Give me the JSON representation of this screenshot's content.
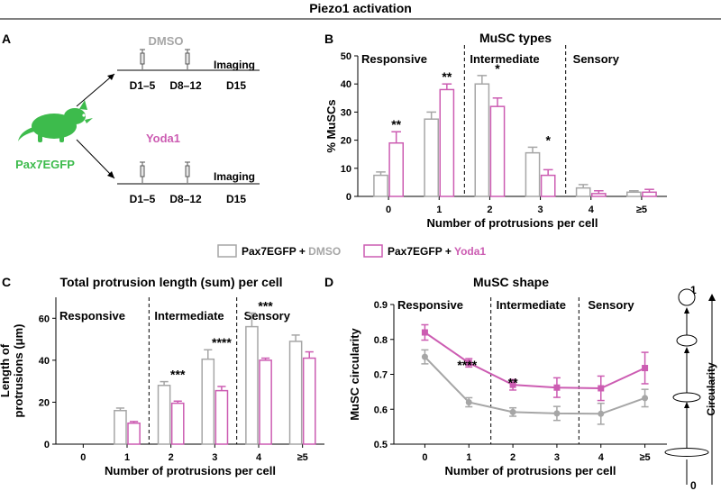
{
  "figure": {
    "title": "Piezo1 activation",
    "panel_labels": [
      "A",
      "B",
      "C",
      "D"
    ]
  },
  "panel_a": {
    "mouse_label": "Pax7EGFP",
    "top_treatment": "DMSO",
    "bottom_treatment": "Yoda1",
    "day1": "D1–5",
    "day2": "D8–12",
    "day3": "D15",
    "imaging": "Imaging"
  },
  "legend": {
    "dmso_prefix": "Pax7EGFP + ",
    "dmso_suffix": "DMSO",
    "yoda_prefix": "Pax7EGFP + ",
    "yoda_suffix": "Yoda1"
  },
  "colors": {
    "dmso": "#a6a6a6",
    "yoda": "#cc5cb2",
    "green": "#3dbb4c",
    "axis": "#000000"
  },
  "chart_data": [
    {
      "panel": "B",
      "type": "bar",
      "title": "MuSC types",
      "xlabel": "Number of protrusions per cell",
      "ylabel": "% MuSCs",
      "categories": [
        "0",
        "1",
        "2",
        "3",
        "4",
        "≥5"
      ],
      "ylim": [
        0,
        50
      ],
      "yticks": [
        0,
        10,
        20,
        30,
        40,
        50
      ],
      "regions": [
        "Responsive",
        "Intermediate",
        "Sensory"
      ],
      "series": [
        {
          "name": "Pax7EGFP + DMSO",
          "values": [
            7.5,
            27.5,
            40,
            15.5,
            3,
            1.5
          ],
          "errors": [
            1.2,
            2.5,
            3,
            2,
            1.2,
            0.5
          ]
        },
        {
          "name": "Pax7EGFP + Yoda1",
          "values": [
            19,
            38,
            32,
            7.5,
            1,
            1.5
          ],
          "errors": [
            4,
            2,
            3,
            2,
            1,
            1
          ]
        }
      ],
      "significance": [
        "**",
        "**",
        "*",
        "*",
        "",
        ""
      ]
    },
    {
      "panel": "C",
      "type": "bar",
      "title": "Total protrusion length (sum) per cell",
      "xlabel": "Number of protrusions per cell",
      "ylabel_line1": "Length of",
      "ylabel_line2": "protrusions (μm)",
      "categories": [
        "0",
        "1",
        "2",
        "3",
        "4",
        "≥5"
      ],
      "ylim": [
        0,
        70
      ],
      "yticks": [
        0,
        20,
        40,
        60
      ],
      "regions": [
        "Responsive",
        "Intermediate",
        "Sensory"
      ],
      "series": [
        {
          "name": "Pax7EGFP + DMSO",
          "values": [
            0,
            16,
            28,
            40.5,
            56,
            49
          ],
          "errors": [
            0,
            1.2,
            1.8,
            4.5,
            6.5,
            3
          ]
        },
        {
          "name": "Pax7EGFP + Yoda1",
          "values": [
            0,
            10,
            19.5,
            25.5,
            40,
            41
          ],
          "errors": [
            0,
            0.8,
            1,
            2,
            1,
            3
          ]
        }
      ],
      "significance": [
        "",
        "",
        "***",
        "****",
        "***",
        ""
      ]
    },
    {
      "panel": "D",
      "type": "line",
      "title": "MuSC shape",
      "xlabel": "Number of protrusions per cell",
      "ylabel": "MuSC circularity",
      "categories": [
        "0",
        "1",
        "2",
        "3",
        "4",
        "≥5"
      ],
      "ylim": [
        0.5,
        0.9
      ],
      "yticks": [
        "0.5",
        "0.6",
        "0.7",
        "0.8",
        "0.9"
      ],
      "regions": [
        "Responsive",
        "Intermediate",
        "Sensory"
      ],
      "series": [
        {
          "name": "Pax7EGFP + DMSO",
          "values": [
            0.75,
            0.62,
            0.592,
            0.588,
            0.587,
            0.632
          ],
          "errors": [
            0.02,
            0.013,
            0.012,
            0.02,
            0.03,
            0.025
          ]
        },
        {
          "name": "Pax7EGFP + Yoda1",
          "values": [
            0.82,
            0.733,
            0.67,
            0.662,
            0.66,
            0.718
          ],
          "errors": [
            0.022,
            0.012,
            0.015,
            0.028,
            0.035,
            0.045
          ]
        }
      ],
      "significance": [
        "",
        "****",
        "**",
        "",
        "",
        ""
      ]
    }
  ],
  "circularity_scale": {
    "label": "Circularity",
    "top": "1",
    "bottom": "0"
  }
}
